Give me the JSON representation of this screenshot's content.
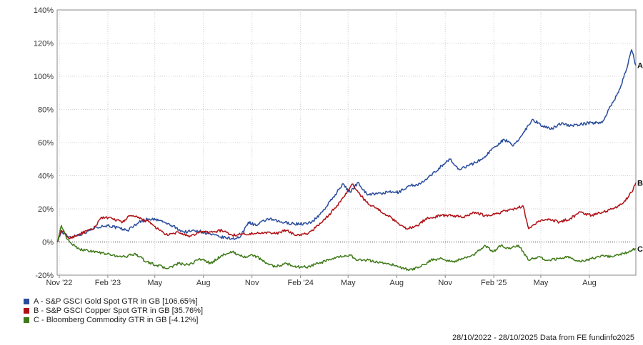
{
  "chart_data": {
    "type": "line",
    "y_unit": "%",
    "ylim": [
      -20,
      140
    ],
    "y_ticks": [
      "140%",
      "120%",
      "100%",
      "80%",
      "60%",
      "40%",
      "20%",
      "0%",
      "-20%"
    ],
    "y_tick_values": [
      140,
      120,
      100,
      80,
      60,
      40,
      20,
      0,
      -20
    ],
    "x_range": [
      "2022-10-28",
      "2025-10-28"
    ],
    "x_ticks": [
      {
        "label": "Nov '22",
        "date": "2022-11-01"
      },
      {
        "label": "Feb '23",
        "date": "2023-02-01"
      },
      {
        "label": "May",
        "date": "2023-05-01"
      },
      {
        "label": "Aug",
        "date": "2023-08-01"
      },
      {
        "label": "Nov",
        "date": "2023-11-01"
      },
      {
        "label": "Feb '24",
        "date": "2024-02-01"
      },
      {
        "label": "May",
        "date": "2024-05-01"
      },
      {
        "label": "Aug",
        "date": "2024-08-01"
      },
      {
        "label": "Nov",
        "date": "2024-11-01"
      },
      {
        "label": "Feb '25",
        "date": "2025-02-01"
      },
      {
        "label": "May",
        "date": "2025-05-01"
      },
      {
        "label": "Aug",
        "date": "2025-08-01"
      }
    ],
    "grid": true,
    "zero_line": "dotted",
    "series": [
      {
        "name": "A - S&P GSCI Gold Spot GTR in GB [106.65%]",
        "end_label": "A",
        "color": "#2a4c9b",
        "points": [
          [
            "2022-10-28",
            0
          ],
          [
            "2022-11-05",
            6
          ],
          [
            "2022-11-20",
            3
          ],
          [
            "2022-12-15",
            5
          ],
          [
            "2023-01-10",
            9
          ],
          [
            "2023-02-01",
            10
          ],
          [
            "2023-02-25",
            8
          ],
          [
            "2023-03-10",
            7
          ],
          [
            "2023-04-01",
            12
          ],
          [
            "2023-04-20",
            14
          ],
          [
            "2023-05-10",
            13
          ],
          [
            "2023-06-01",
            10
          ],
          [
            "2023-06-25",
            6
          ],
          [
            "2023-07-20",
            7
          ],
          [
            "2023-08-10",
            5
          ],
          [
            "2023-09-01",
            3
          ],
          [
            "2023-09-25",
            2
          ],
          [
            "2023-10-10",
            3
          ],
          [
            "2023-10-25",
            12
          ],
          [
            "2023-11-10",
            10
          ],
          [
            "2023-12-01",
            14
          ],
          [
            "2023-12-25",
            12
          ],
          [
            "2024-01-20",
            11
          ],
          [
            "2024-02-15",
            11
          ],
          [
            "2024-03-01",
            14
          ],
          [
            "2024-03-20",
            21
          ],
          [
            "2024-04-10",
            30
          ],
          [
            "2024-04-20",
            35
          ],
          [
            "2024-05-05",
            30
          ],
          [
            "2024-05-20",
            36
          ],
          [
            "2024-06-05",
            29
          ],
          [
            "2024-06-25",
            29
          ],
          [
            "2024-07-15",
            30
          ],
          [
            "2024-08-05",
            30
          ],
          [
            "2024-08-25",
            34
          ],
          [
            "2024-09-15",
            35
          ],
          [
            "2024-10-05",
            40
          ],
          [
            "2024-10-25",
            46
          ],
          [
            "2024-11-10",
            50
          ],
          [
            "2024-11-25",
            44
          ],
          [
            "2024-12-15",
            46
          ],
          [
            "2025-01-10",
            50
          ],
          [
            "2025-02-01",
            57
          ],
          [
            "2025-02-20",
            62
          ],
          [
            "2025-03-10",
            58
          ],
          [
            "2025-03-25",
            64
          ],
          [
            "2025-04-15",
            74
          ],
          [
            "2025-05-05",
            70
          ],
          [
            "2025-05-20",
            68
          ],
          [
            "2025-06-10",
            72
          ],
          [
            "2025-06-25",
            70
          ],
          [
            "2025-07-15",
            71
          ],
          [
            "2025-08-05",
            72
          ],
          [
            "2025-08-25",
            72
          ],
          [
            "2025-09-10",
            82
          ],
          [
            "2025-09-25",
            90
          ],
          [
            "2025-10-10",
            104
          ],
          [
            "2025-10-20",
            116
          ],
          [
            "2025-10-28",
            106.65
          ]
        ]
      },
      {
        "name": "B - S&P GSCI Copper Spot GTR in GB [35.76%]",
        "end_label": "B",
        "color": "#b01116",
        "points": [
          [
            "2022-10-28",
            0
          ],
          [
            "2022-11-05",
            7
          ],
          [
            "2022-11-20",
            2
          ],
          [
            "2022-12-10",
            5
          ],
          [
            "2023-01-05",
            8
          ],
          [
            "2023-01-20",
            15
          ],
          [
            "2023-02-10",
            14
          ],
          [
            "2023-03-01",
            12
          ],
          [
            "2023-03-15",
            16
          ],
          [
            "2023-04-05",
            14
          ],
          [
            "2023-04-20",
            12
          ],
          [
            "2023-05-10",
            7
          ],
          [
            "2023-05-25",
            4
          ],
          [
            "2023-06-15",
            6
          ],
          [
            "2023-07-05",
            3
          ],
          [
            "2023-07-25",
            6
          ],
          [
            "2023-08-15",
            6
          ],
          [
            "2023-09-05",
            7
          ],
          [
            "2023-09-25",
            4
          ],
          [
            "2023-10-15",
            5
          ],
          [
            "2023-11-05",
            5
          ],
          [
            "2023-11-25",
            6
          ],
          [
            "2023-12-15",
            5
          ],
          [
            "2024-01-05",
            7
          ],
          [
            "2024-01-25",
            4
          ],
          [
            "2024-02-15",
            5
          ],
          [
            "2024-03-05",
            10
          ],
          [
            "2024-03-25",
            16
          ],
          [
            "2024-04-10",
            22
          ],
          [
            "2024-04-25",
            28
          ],
          [
            "2024-05-10",
            35
          ],
          [
            "2024-05-20",
            30
          ],
          [
            "2024-06-05",
            24
          ],
          [
            "2024-06-25",
            20
          ],
          [
            "2024-07-15",
            16
          ],
          [
            "2024-08-01",
            12
          ],
          [
            "2024-08-20",
            8
          ],
          [
            "2024-09-10",
            10
          ],
          [
            "2024-09-25",
            14
          ],
          [
            "2024-10-10",
            15
          ],
          [
            "2024-10-25",
            16
          ],
          [
            "2024-11-15",
            16
          ],
          [
            "2024-12-05",
            15
          ],
          [
            "2024-12-25",
            18
          ],
          [
            "2025-01-15",
            16
          ],
          [
            "2025-02-05",
            17
          ],
          [
            "2025-02-25",
            19
          ],
          [
            "2025-03-15",
            20
          ],
          [
            "2025-03-28",
            22
          ],
          [
            "2025-04-08",
            8
          ],
          [
            "2025-04-25",
            12
          ],
          [
            "2025-05-15",
            14
          ],
          [
            "2025-06-05",
            12
          ],
          [
            "2025-06-25",
            14
          ],
          [
            "2025-07-15",
            18
          ],
          [
            "2025-08-05",
            16
          ],
          [
            "2025-08-25",
            18
          ],
          [
            "2025-09-15",
            20
          ],
          [
            "2025-10-05",
            24
          ],
          [
            "2025-10-20",
            30
          ],
          [
            "2025-10-28",
            35.76
          ]
        ]
      },
      {
        "name": "C - Bloomberg Commodity GTR in GB [-4.12%]",
        "end_label": "C",
        "color": "#3e7a18",
        "points": [
          [
            "2022-10-28",
            0
          ],
          [
            "2022-11-05",
            10
          ],
          [
            "2022-11-15",
            2
          ],
          [
            "2022-12-05",
            -4
          ],
          [
            "2023-01-10",
            -6
          ],
          [
            "2023-02-10",
            -8
          ],
          [
            "2023-03-05",
            -9
          ],
          [
            "2023-03-25",
            -7
          ],
          [
            "2023-04-15",
            -12
          ],
          [
            "2023-05-05",
            -14
          ],
          [
            "2023-05-25",
            -16
          ],
          [
            "2023-06-15",
            -13
          ],
          [
            "2023-07-05",
            -14
          ],
          [
            "2023-07-25",
            -10
          ],
          [
            "2023-08-15",
            -13
          ],
          [
            "2023-09-05",
            -8
          ],
          [
            "2023-09-25",
            -6
          ],
          [
            "2023-10-15",
            -9
          ],
          [
            "2023-11-05",
            -8
          ],
          [
            "2023-11-25",
            -12
          ],
          [
            "2023-12-15",
            -15
          ],
          [
            "2024-01-05",
            -13
          ],
          [
            "2024-01-25",
            -15
          ],
          [
            "2024-02-15",
            -15
          ],
          [
            "2024-03-05",
            -13
          ],
          [
            "2024-03-25",
            -11
          ],
          [
            "2024-04-15",
            -9
          ],
          [
            "2024-05-05",
            -8
          ],
          [
            "2024-05-20",
            -11
          ],
          [
            "2024-06-05",
            -11
          ],
          [
            "2024-06-25",
            -12
          ],
          [
            "2024-07-15",
            -13
          ],
          [
            "2024-08-05",
            -15
          ],
          [
            "2024-08-25",
            -17
          ],
          [
            "2024-09-15",
            -15
          ],
          [
            "2024-10-05",
            -11
          ],
          [
            "2024-10-25",
            -10
          ],
          [
            "2024-11-15",
            -12
          ],
          [
            "2024-12-05",
            -10
          ],
          [
            "2024-12-25",
            -8
          ],
          [
            "2025-01-15",
            -2
          ],
          [
            "2025-01-30",
            -6
          ],
          [
            "2025-02-15",
            -2
          ],
          [
            "2025-03-01",
            -4
          ],
          [
            "2025-03-20",
            -2
          ],
          [
            "2025-04-08",
            -11
          ],
          [
            "2025-04-25",
            -9
          ],
          [
            "2025-05-15",
            -11
          ],
          [
            "2025-06-05",
            -10
          ],
          [
            "2025-06-25",
            -9
          ],
          [
            "2025-07-15",
            -12
          ],
          [
            "2025-08-05",
            -10
          ],
          [
            "2025-08-25",
            -8
          ],
          [
            "2025-09-15",
            -9
          ],
          [
            "2025-10-05",
            -7
          ],
          [
            "2025-10-20",
            -5
          ],
          [
            "2025-10-28",
            -4.12
          ]
        ]
      }
    ],
    "legend_position": "bottom-left",
    "footer": "28/10/2022 - 28/10/2025 Data from FE fundinfo2025"
  }
}
